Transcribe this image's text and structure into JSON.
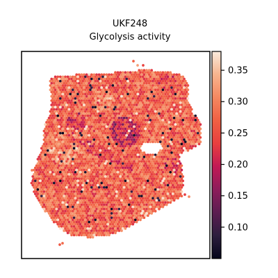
{
  "chart_data": {
    "type": "heatmap",
    "subtype": "spatial hex-spot map",
    "title_lines": [
      "UKF248",
      "Glycolysis activity"
    ],
    "xlabel": "",
    "ylabel": "",
    "grid": false,
    "legend": "colorbar-right",
    "colormap": "rocket",
    "colormap_stops": [
      "#03051a",
      "#2d1e3e",
      "#5c1e51",
      "#8d1d5b",
      "#c21a55",
      "#e83f3f",
      "#f06043",
      "#f58860",
      "#f6b48e",
      "#faebdd"
    ],
    "color_range": [
      0.05,
      0.38
    ],
    "colorbar_ticks": [
      0.1,
      0.15,
      0.2,
      0.25,
      0.3,
      0.35
    ],
    "colorbar_tick_labels": [
      "0.10",
      "0.15",
      "0.20",
      "0.25",
      "0.30",
      "0.35"
    ],
    "value_summary": {
      "min": 0.05,
      "max": 0.38,
      "typical": 0.27
    }
  }
}
